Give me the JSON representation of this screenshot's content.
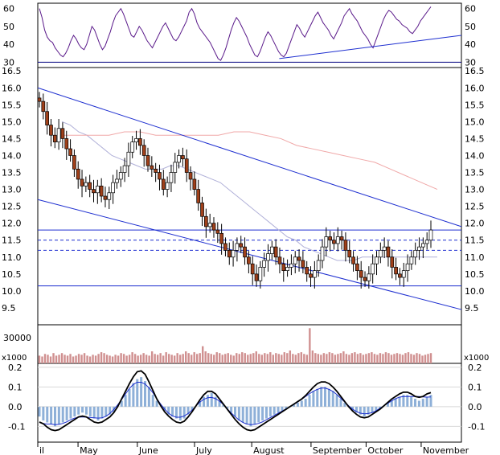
{
  "chart_data": [
    {
      "type": "line",
      "panel": "rsi",
      "y_ticks": [
        30,
        40,
        50,
        60
      ],
      "ylim": [
        27,
        63
      ],
      "reference_line": 30,
      "series": [
        {
          "values": [
            60,
            55,
            48,
            44,
            42,
            41,
            38,
            36,
            34,
            33,
            35,
            38,
            42,
            45,
            43,
            40,
            38,
            37,
            40,
            45,
            50,
            48,
            44,
            40,
            37,
            39,
            43,
            47,
            52,
            56,
            58,
            60,
            57,
            53,
            49,
            45,
            44,
            47,
            50,
            48,
            45,
            42,
            40,
            38,
            41,
            44,
            47,
            50,
            52,
            49,
            46,
            43,
            42,
            44,
            47,
            50,
            53,
            58,
            60,
            57,
            52,
            49,
            47,
            45,
            43,
            41,
            38,
            35,
            32,
            31,
            34,
            38,
            43,
            48,
            52,
            55,
            53,
            50,
            47,
            44,
            40,
            37,
            34,
            33,
            36,
            40,
            44,
            47,
            45,
            42,
            39,
            36,
            34,
            33,
            35,
            39,
            43,
            47,
            51,
            49,
            46,
            44,
            47,
            50,
            53,
            56,
            58,
            55,
            52,
            50,
            48,
            45,
            43,
            46,
            49,
            52,
            56,
            58,
            60,
            57,
            55,
            53,
            50,
            47,
            45,
            43,
            40,
            38,
            42,
            46,
            50,
            54,
            57,
            59,
            58,
            56,
            54,
            53,
            51,
            50,
            49,
            47,
            46,
            48,
            50,
            53,
            55,
            57,
            59,
            61
          ]
        },
        {
          "values": [
            [
              0.57,
              32
            ],
            [
              1.0,
              45
            ]
          ]
        }
      ]
    },
    {
      "type": "line",
      "panel": "price",
      "x_ticks": [
        "il",
        "May",
        "June",
        "July",
        "August",
        "September",
        "October",
        "November"
      ],
      "y_ticks": [
        9.5,
        10.0,
        10.5,
        11.0,
        11.5,
        12.0,
        12.5,
        13.0,
        13.5,
        14.0,
        14.5,
        15.0,
        15.5,
        16.0,
        16.5
      ],
      "ylim": [
        9.0,
        16.6
      ],
      "horizontal_lines": [
        11.8,
        11.5,
        11.2,
        10.15
      ],
      "series": [
        {
          "values": [
            15.6,
            15.3,
            14.9,
            14.6,
            14.4,
            14.8,
            14.5,
            14.2,
            14.0,
            13.6,
            13.3,
            13.1,
            13.2,
            13.0,
            12.9,
            13.1,
            12.8,
            12.7,
            12.9,
            13.2,
            13.3,
            13.5,
            13.7,
            14.1,
            14.4,
            14.5,
            14.3,
            14.0,
            13.7,
            13.6,
            13.5,
            13.3,
            13.0,
            13.2,
            13.5,
            13.8,
            14.0,
            13.9,
            13.5,
            13.3,
            13.0,
            12.6,
            12.2,
            11.9,
            12.0,
            11.8,
            11.7,
            11.4,
            11.2,
            11.0,
            11.2,
            11.4,
            11.3,
            11.0,
            10.8,
            10.5,
            10.3,
            10.7,
            10.9,
            11.1,
            11.3,
            11.0,
            10.8,
            10.6,
            10.7,
            10.8,
            11.0,
            10.9,
            10.7,
            10.5,
            10.4,
            10.6,
            10.9,
            11.3,
            11.6,
            11.5,
            11.4,
            11.6,
            11.5,
            11.2,
            11.0,
            10.8,
            10.6,
            10.4,
            10.3,
            10.5,
            10.8,
            11.0,
            11.2,
            11.3,
            11.0,
            10.7,
            10.5,
            10.4,
            10.6,
            10.8,
            11.0,
            11.2,
            11.3,
            11.4,
            11.5,
            11.8
          ]
        },
        {
          "values": [
            15.0,
            14.9,
            14.7,
            14.6,
            14.4,
            14.2,
            14.0,
            13.9,
            13.8,
            13.7,
            13.6,
            13.6,
            13.6,
            13.7,
            13.7,
            13.6,
            13.5,
            13.4,
            13.3,
            13.2,
            13.0,
            12.8,
            12.6,
            12.4,
            12.2,
            12.0,
            11.8,
            11.6,
            11.5,
            11.3,
            11.2,
            11.1,
            11.0,
            10.9,
            10.9,
            10.9,
            11.0,
            11.0,
            11.0,
            11.0,
            11.0,
            11.0,
            11.0,
            11.0,
            11.0,
            11.0
          ]
        },
        {
          "values": [
            14.6,
            14.6,
            14.6,
            14.6,
            14.7,
            14.7,
            14.6,
            14.6,
            14.6,
            14.6,
            14.6,
            14.7,
            14.7,
            14.6,
            14.5,
            14.3,
            14.2,
            14.1,
            14.0,
            13.9,
            13.8,
            13.6,
            13.4,
            13.2,
            13.0
          ]
        },
        {
          "values": [
            [
              0.0,
              16.0
            ],
            [
              1.0,
              11.9
            ]
          ]
        },
        {
          "values": [
            [
              0.0,
              12.7
            ],
            [
              1.0,
              9.45
            ]
          ]
        }
      ]
    },
    {
      "type": "bar",
      "panel": "volume",
      "y_ticks": [
        30000
      ],
      "unit_label": "x1000",
      "values": [
        9,
        8,
        11,
        10,
        8,
        12,
        9,
        10,
        12,
        10,
        9,
        11,
        8,
        9,
        11,
        10,
        12,
        9,
        8,
        10,
        9,
        11,
        13,
        12,
        10,
        9,
        8,
        10,
        9,
        12,
        11,
        9,
        10,
        13,
        11,
        9,
        10,
        12,
        10,
        9,
        14,
        11,
        10,
        12,
        9,
        13,
        11,
        10,
        9,
        12,
        10,
        11,
        14,
        12,
        10,
        13,
        11,
        12,
        20,
        14,
        12,
        11,
        10,
        13,
        12,
        10,
        11,
        12,
        10,
        9,
        12,
        11,
        13,
        12,
        10,
        11,
        12,
        14,
        11,
        10,
        12,
        11,
        13,
        10,
        12,
        11,
        10,
        13,
        12,
        15,
        11,
        10,
        12,
        13,
        11,
        10,
        41,
        15,
        12,
        11,
        10,
        12,
        11,
        13,
        12,
        10,
        11,
        12,
        14,
        11,
        10,
        12,
        13,
        11,
        12,
        10,
        11,
        12,
        13,
        11,
        10,
        12,
        11,
        13,
        12,
        10,
        11,
        12,
        11,
        10,
        12,
        13,
        11,
        10,
        12,
        11,
        9,
        10,
        11,
        12
      ]
    },
    {
      "type": "bar",
      "panel": "macd",
      "y_ticks": [
        -0.1,
        0.0,
        0.1,
        0.2
      ],
      "ylim": [
        -0.18,
        0.22
      ],
      "values": [
        -0.05,
        -0.07,
        -0.08,
        -0.09,
        -0.1,
        -0.09,
        -0.08,
        -0.07,
        -0.06,
        -0.05,
        -0.04,
        -0.03,
        -0.04,
        -0.05,
        -0.06,
        -0.07,
        -0.06,
        -0.05,
        -0.04,
        -0.03,
        0.0,
        0.03,
        0.06,
        0.09,
        0.12,
        0.14,
        0.15,
        0.13,
        0.1,
        0.06,
        0.03,
        0.0,
        -0.02,
        -0.04,
        -0.05,
        -0.06,
        -0.07,
        -0.06,
        -0.04,
        -0.02,
        0.0,
        0.03,
        0.05,
        0.06,
        0.07,
        0.05,
        0.03,
        0.01,
        -0.01,
        -0.03,
        -0.05,
        -0.07,
        -0.08,
        -0.09,
        -0.1,
        -0.09,
        -0.08,
        -0.07,
        -0.06,
        -0.05,
        -0.04,
        -0.03,
        -0.02,
        -0.01,
        0.0,
        0.01,
        0.02,
        0.03,
        0.04,
        0.06,
        0.08,
        0.09,
        0.1,
        0.1,
        0.09,
        0.08,
        0.06,
        0.04,
        0.02,
        0.0,
        -0.02,
        -0.03,
        -0.04,
        -0.05,
        -0.04,
        -0.03,
        -0.02,
        -0.01,
        0.0,
        0.02,
        0.03,
        0.04,
        0.05,
        0.06,
        0.06,
        0.05,
        0.04,
        0.03,
        0.04,
        0.05,
        0.06
      ]
    }
  ]
}
